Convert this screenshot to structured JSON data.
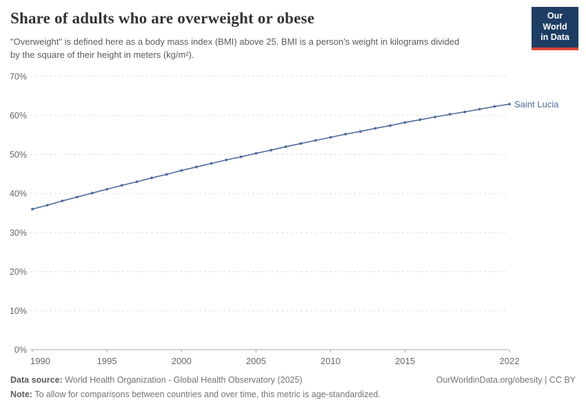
{
  "header": {
    "title": "Share of adults who are overweight or obese",
    "subtitle": "\"Overweight\" is defined here as a body mass index (BMI) above 25. BMI is a person's weight in kilograms divided by the square of their height in meters (kg/m²).",
    "logo": {
      "line1": "Our World",
      "line2": "in Data",
      "bg_color": "#1d3d63",
      "accent_color": "#dc4437"
    }
  },
  "chart_data": {
    "type": "line",
    "title": "Share of adults who are overweight or obese",
    "entity": "Saint Lucia",
    "unit": "%",
    "line_color": "#4C6A9C",
    "grid": "horizontal-dashed",
    "legend_position": "end-of-line-label",
    "ylim": [
      0,
      70
    ],
    "yticks": [
      0,
      10,
      20,
      30,
      40,
      50,
      60,
      70
    ],
    "xticks": [
      1990,
      1995,
      2000,
      2005,
      2010,
      2015,
      2022
    ],
    "x": [
      1990,
      1991,
      1992,
      1993,
      1994,
      1995,
      1996,
      1997,
      1998,
      1999,
      2000,
      2001,
      2002,
      2003,
      2004,
      2005,
      2006,
      2007,
      2008,
      2009,
      2010,
      2011,
      2012,
      2013,
      2014,
      2015,
      2016,
      2017,
      2018,
      2019,
      2020,
      2021,
      2022
    ],
    "values": [
      36.0,
      37.0,
      38.1,
      39.1,
      40.1,
      41.1,
      42.1,
      43.0,
      44.0,
      44.9,
      45.9,
      46.8,
      47.7,
      48.6,
      49.4,
      50.3,
      51.1,
      52.0,
      52.8,
      53.6,
      54.4,
      55.2,
      55.9,
      56.7,
      57.4,
      58.2,
      58.9,
      59.6,
      60.3,
      60.9,
      61.6,
      62.3,
      62.9
    ]
  },
  "footer": {
    "source_label": "Data source:",
    "source_text": " World Health Organization - Global Health Observatory (2025)",
    "link_text": "OurWorldinData.org/obesity | CC BY",
    "note_label": "Note:",
    "note_text": " To allow for comparisons between countries and over time, this metric is age-standardized."
  }
}
